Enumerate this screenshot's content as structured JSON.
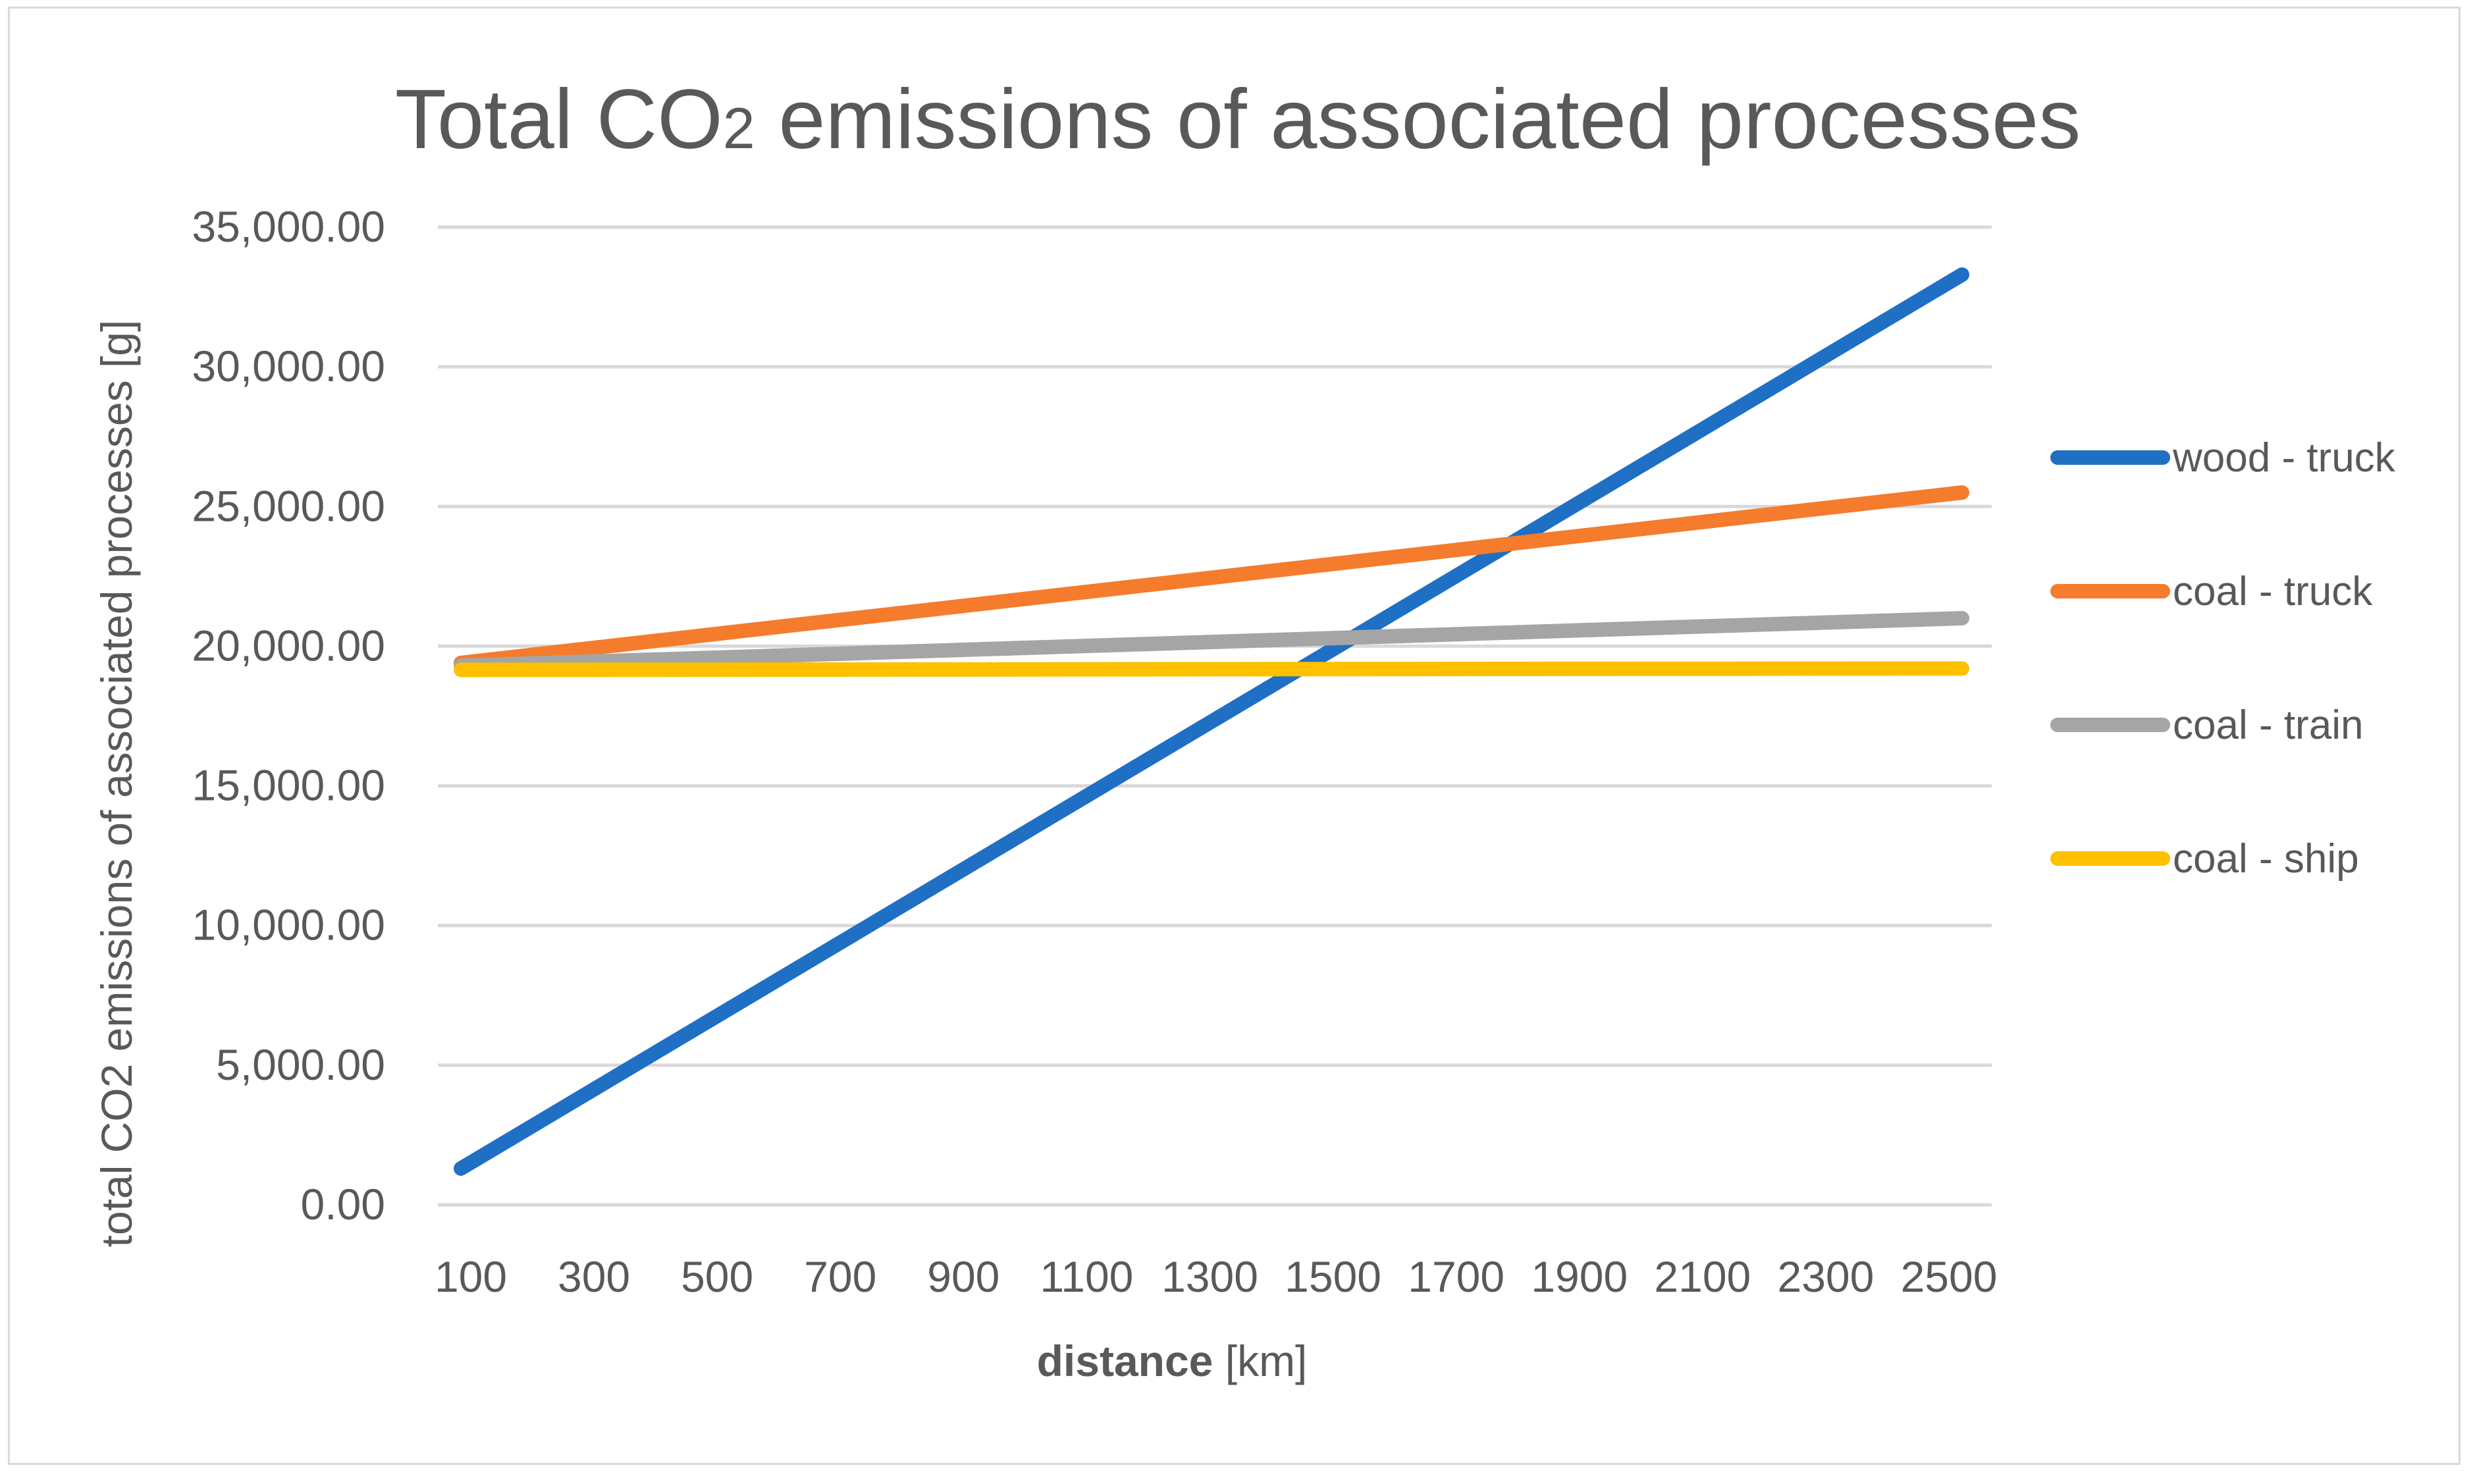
{
  "chart_data": {
    "type": "line",
    "title_main": "Total CO",
    "title_sub": "2",
    "title_rest": " emissions of associated processes",
    "xlabel_bold": "distance",
    "xlabel_rest": " [km]",
    "ylabel": "total CO2 emissions of associated processes [g]",
    "x": [
      100,
      2500
    ],
    "x_ticks": [
      "100",
      "300",
      "500",
      "700",
      "900",
      "1100",
      "1300",
      "1500",
      "1700",
      "1900",
      "2100",
      "2300",
      "2500"
    ],
    "x_tick_values": [
      100,
      300,
      500,
      700,
      900,
      1100,
      1300,
      1500,
      1700,
      1900,
      2100,
      2300,
      2500
    ],
    "y_ticks": [
      "0.00",
      "5,000.00",
      "10,000.00",
      "15,000.00",
      "20,000.00",
      "25,000.00",
      "30,000.00",
      "35,000.00"
    ],
    "y_tick_values": [
      0,
      5000,
      10000,
      15000,
      20000,
      25000,
      30000,
      35000
    ],
    "ylim": [
      0,
      35000
    ],
    "xlim": [
      100,
      2500
    ],
    "grid": true,
    "legend_position": "right",
    "series": [
      {
        "name": "wood - truck",
        "color": "#1f6fc5",
        "values": [
          1300,
          33300
        ]
      },
      {
        "name": "coal - truck",
        "color": "#f47c2c",
        "values": [
          19400,
          25500
        ]
      },
      {
        "name": "coal - train",
        "color": "#a5a5a5",
        "values": [
          19300,
          21000
        ]
      },
      {
        "name": "coal - ship",
        "color": "#ffc000",
        "values": [
          19150,
          19200
        ]
      }
    ]
  }
}
